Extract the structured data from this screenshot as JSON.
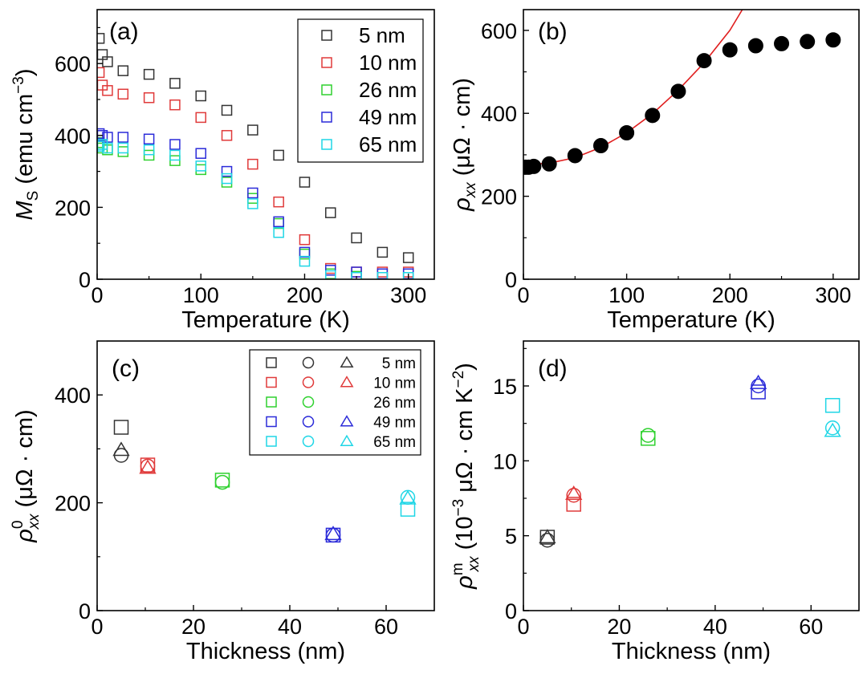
{
  "figure": {
    "panels": [
      "a",
      "b",
      "c",
      "d"
    ]
  },
  "chart_data": [
    {
      "id": "a",
      "type": "scatter",
      "panel_label": "(a)",
      "xlabel": "Temperature (K)",
      "ylabel_main": "M",
      "ylabel_sub": "S",
      "ylabel_unit": " (emu cm",
      "ylabel_exp": "−3",
      "ylabel_close": ")",
      "xlim": [
        0,
        325
      ],
      "ylim": [
        0,
        750
      ],
      "xticks": [
        0,
        100,
        200,
        300
      ],
      "yticks": [
        0,
        200,
        400,
        600
      ],
      "legend_position": "top-right",
      "marker": "square",
      "series": [
        {
          "name": "5 nm",
          "color": "#333333",
          "x": [
            2,
            5,
            10,
            25,
            50,
            75,
            100,
            125,
            150,
            175,
            200,
            225,
            250,
            275,
            300
          ],
          "y": [
            670,
            625,
            605,
            580,
            570,
            545,
            510,
            470,
            415,
            345,
            270,
            185,
            115,
            75,
            60
          ]
        },
        {
          "name": "10 nm",
          "color": "#e03a3a",
          "x": [
            2,
            5,
            10,
            25,
            50,
            75,
            100,
            125,
            150,
            175,
            200,
            225,
            250,
            275,
            300
          ],
          "y": [
            575,
            540,
            525,
            515,
            505,
            485,
            450,
            400,
            320,
            215,
            110,
            30,
            20,
            20,
            20
          ]
        },
        {
          "name": "26 nm",
          "color": "#2fd12f",
          "x": [
            2,
            5,
            10,
            25,
            50,
            75,
            100,
            125,
            150,
            175,
            200,
            225,
            250,
            275,
            300
          ],
          "y": [
            380,
            365,
            360,
            355,
            345,
            330,
            305,
            270,
            225,
            155,
            70,
            15,
            8,
            5,
            5
          ]
        },
        {
          "name": "49 nm",
          "color": "#2b2bd9",
          "x": [
            2,
            5,
            10,
            25,
            50,
            75,
            100,
            125,
            150,
            175,
            200,
            225,
            250,
            275,
            300
          ],
          "y": [
            405,
            400,
            395,
            395,
            390,
            375,
            350,
            300,
            240,
            160,
            75,
            25,
            20,
            15,
            15
          ]
        },
        {
          "name": "65 nm",
          "color": "#1fd6e6",
          "x": [
            2,
            5,
            10,
            25,
            50,
            75,
            100,
            125,
            150,
            175,
            200,
            225,
            250,
            275,
            300
          ],
          "y": [
            370,
            375,
            365,
            365,
            360,
            345,
            315,
            280,
            210,
            130,
            50,
            10,
            5,
            5,
            5
          ]
        }
      ]
    },
    {
      "id": "b",
      "type": "scatter",
      "panel_label": "(b)",
      "xlabel": "Temperature (K)",
      "ylabel_main": "ρ",
      "ylabel_sub": "xx",
      "ylabel_unit": " (μΩ · cm)",
      "xlim": [
        0,
        325
      ],
      "ylim": [
        0,
        650
      ],
      "xticks": [
        0,
        100,
        200,
        300
      ],
      "yticks": [
        0,
        200,
        400,
        600
      ],
      "series": [
        {
          "name": "data",
          "color": "#000000",
          "marker": "filled-circle",
          "x": [
            2,
            5,
            10,
            25,
            50,
            75,
            100,
            125,
            150,
            175,
            200,
            225,
            250,
            275,
            300
          ],
          "y": [
            270,
            270,
            272,
            278,
            298,
            322,
            353,
            395,
            453,
            527,
            553,
            563,
            568,
            573,
            577
          ]
        }
      ],
      "fit": {
        "name": "fit",
        "color": "#e02020",
        "type": "line",
        "x": [
          0,
          25,
          50,
          75,
          100,
          125,
          150,
          175,
          200,
          212
        ],
        "y": [
          276,
          280,
          293,
          318,
          353,
          399,
          456,
          522,
          600,
          650
        ]
      }
    },
    {
      "id": "c",
      "type": "scatter",
      "panel_label": "(c)",
      "xlabel": "Thickness (nm)",
      "ylabel_main": "ρ",
      "ylabel_sub": "xx",
      "ylabel_sup": "0",
      "ylabel_unit": " (μΩ · cm)",
      "xlim": [
        0,
        70
      ],
      "ylim": [
        0,
        500
      ],
      "xticks": [
        0,
        20,
        40,
        60
      ],
      "yticks": [
        0,
        200,
        400
      ],
      "legend_position": "top-right",
      "series": [
        {
          "name": "5 nm",
          "color": "#333333",
          "x": 5,
          "square": 340,
          "circle": 288,
          "triangle": 298
        },
        {
          "name": "10 nm",
          "color": "#e03a3a",
          "x": 10.5,
          "square": 270,
          "circle": 268,
          "triangle": 265
        },
        {
          "name": "26 nm",
          "color": "#2fd12f",
          "x": 26,
          "square": 242,
          "circle": 238,
          "triangle": null
        },
        {
          "name": "49 nm",
          "color": "#2b2bd9",
          "x": 49,
          "square": 140,
          "circle": 140,
          "triangle": 142
        },
        {
          "name": "65 nm",
          "color": "#1fd6e6",
          "x": 64.5,
          "square": 188,
          "circle": 210,
          "triangle": 208
        }
      ]
    },
    {
      "id": "d",
      "type": "scatter",
      "panel_label": "(d)",
      "xlabel": "Thickness (nm)",
      "ylabel_main": "ρ",
      "ylabel_sub": "xx",
      "ylabel_sup": "m",
      "ylabel_unit": " (10",
      "ylabel_exp": "−3",
      "ylabel_unit2": " μΩ · cm K",
      "ylabel_exp2": "−2",
      "ylabel_close": ")",
      "xlim": [
        0,
        70
      ],
      "ylim": [
        0,
        18
      ],
      "xticks": [
        0,
        20,
        40,
        60
      ],
      "yticks": [
        0,
        5,
        10,
        15
      ],
      "series": [
        {
          "name": "5 nm",
          "color": "#333333",
          "x": 5,
          "square": 4.9,
          "circle": 4.7,
          "triangle": 4.9
        },
        {
          "name": "10 nm",
          "color": "#e03a3a",
          "x": 10.5,
          "square": 7.1,
          "circle": 7.7,
          "triangle": 7.8
        },
        {
          "name": "26 nm",
          "color": "#2fd12f",
          "x": 26,
          "square": 11.5,
          "circle": 11.7,
          "triangle": null
        },
        {
          "name": "49 nm",
          "color": "#2b2bd9",
          "x": 49,
          "square": 14.6,
          "circle": 15.0,
          "triangle": 15.2
        },
        {
          "name": "65 nm",
          "color": "#1fd6e6",
          "x": 64.5,
          "square": 13.7,
          "circle": 12.2,
          "triangle": 12.0
        }
      ]
    }
  ]
}
